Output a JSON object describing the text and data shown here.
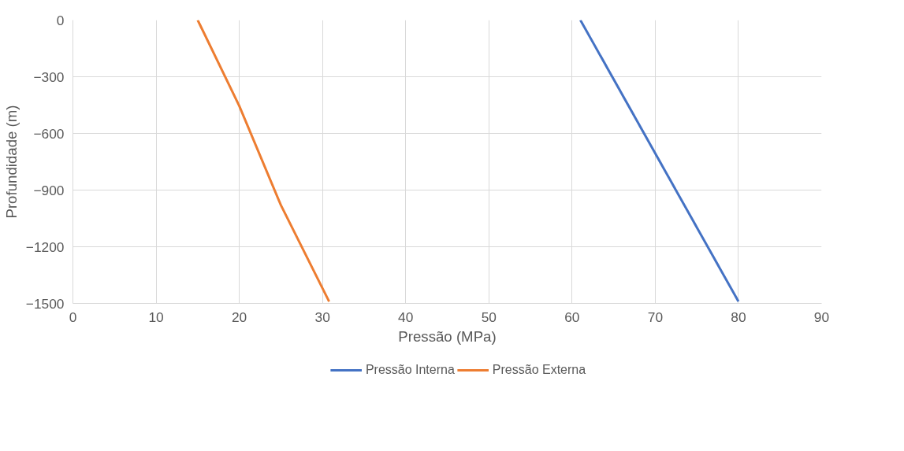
{
  "chart_data": {
    "type": "line",
    "xlabel": "Pressão (MPa)",
    "ylabel": "Profundidade (m)",
    "xlim": [
      0,
      90
    ],
    "xticks": [
      0,
      10,
      20,
      30,
      40,
      50,
      60,
      70,
      80,
      90
    ],
    "ylim": [
      -1500,
      0
    ],
    "yticks": [
      -1500,
      -1200,
      -900,
      -600,
      -300,
      0
    ],
    "grid": true,
    "legend": "bottom",
    "marker": "none",
    "line_style": "solid",
    "series": [
      {
        "name": "Pressão Interna",
        "color": "#4472c4",
        "x": [
          61.0,
          80.0
        ],
        "values": [
          0,
          -1490
        ]
      },
      {
        "name": "Pressão Externa",
        "color": "#ed7d31",
        "x": [
          15.0,
          20.0,
          25.0,
          30.8
        ],
        "values": [
          0,
          -455,
          -980,
          -1490
        ]
      }
    ]
  }
}
